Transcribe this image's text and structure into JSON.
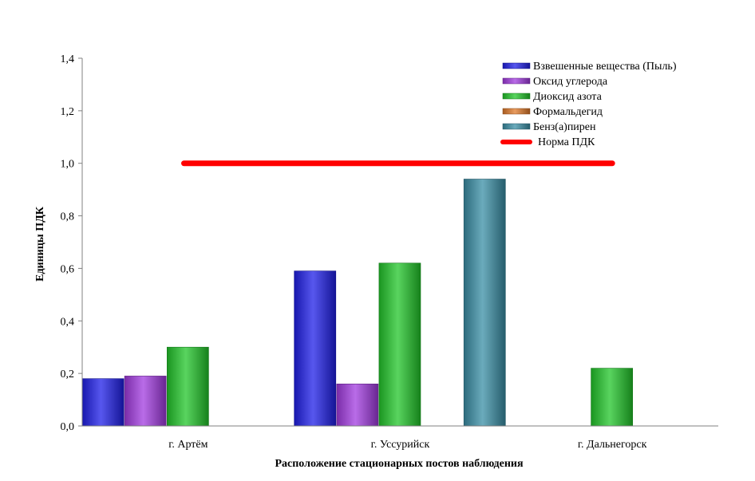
{
  "chart_data": {
    "type": "bar",
    "categories": [
      "г. Артём",
      "г. Уссурийск",
      "г. Дальнегорск"
    ],
    "series": [
      {
        "name": "Взвешенные вещества (Пыль)",
        "values": [
          0.18,
          0.59,
          null
        ],
        "color": "#1f1fe8"
      },
      {
        "name": "Оксид углерода",
        "values": [
          0.19,
          0.16,
          null
        ],
        "color": "#a23be0"
      },
      {
        "name": "Диоксид азота",
        "values": [
          0.3,
          0.62,
          0.22
        ],
        "color": "#22c62a"
      },
      {
        "name": "Формальдегид",
        "values": [
          null,
          null,
          null
        ],
        "color": "#e07a2a"
      },
      {
        "name": "Бенз(а)пирен",
        "values": [
          null,
          0.94,
          null
        ],
        "color": "#3a8fa6"
      }
    ],
    "reference_line": {
      "name": "Норма ПДК",
      "value": 1.0,
      "color": "#ff0000"
    },
    "xlabel": "Расположение стационарных постов наблюдения",
    "ylabel": "Единицы ПДК",
    "ylim": [
      0,
      1.4
    ],
    "yticks": [
      "0,0",
      "0,2",
      "0,4",
      "0,6",
      "0,8",
      "1,0",
      "1,2",
      "1,4"
    ],
    "grid": false,
    "legend_position": "top-right"
  }
}
